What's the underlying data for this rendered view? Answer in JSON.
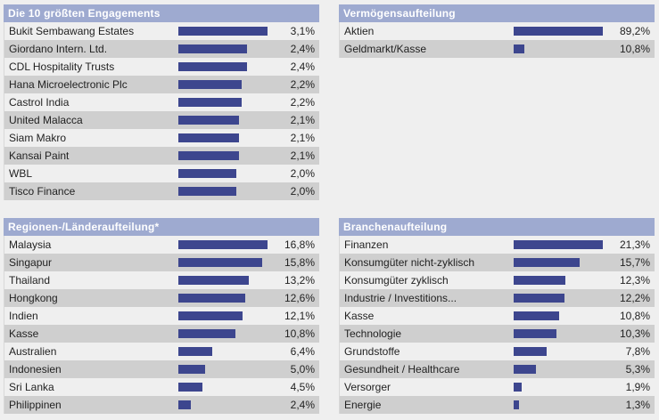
{
  "panels": [
    {
      "id": "top10",
      "title": "Die 10 größten Engagements",
      "max": 3.1,
      "rows": [
        {
          "label": "Bukit Sembawang Estates",
          "value": 3.1,
          "text": "3,1%"
        },
        {
          "label": "Giordano Intern. Ltd.",
          "value": 2.4,
          "text": "2,4%"
        },
        {
          "label": "CDL Hospitality Trusts",
          "value": 2.4,
          "text": "2,4%"
        },
        {
          "label": "Hana Microelectronic Plc",
          "value": 2.2,
          "text": "2,2%"
        },
        {
          "label": "Castrol India",
          "value": 2.2,
          "text": "2,2%"
        },
        {
          "label": "United Malacca",
          "value": 2.1,
          "text": "2,1%"
        },
        {
          "label": "Siam Makro",
          "value": 2.1,
          "text": "2,1%"
        },
        {
          "label": "Kansai Paint",
          "value": 2.1,
          "text": "2,1%"
        },
        {
          "label": "WBL",
          "value": 2.0,
          "text": "2,0%"
        },
        {
          "label": "Tisco Finance",
          "value": 2.0,
          "text": "2,0%"
        }
      ]
    },
    {
      "id": "assets",
      "title": "Vermögensaufteilung",
      "max": 89.2,
      "rows": [
        {
          "label": "Aktien",
          "value": 89.2,
          "text": "89,2%"
        },
        {
          "label": "Geldmarkt/Kasse",
          "value": 10.8,
          "text": "10,8%"
        }
      ]
    },
    {
      "id": "regions",
      "title": "Regionen-/Länderaufteilung*",
      "max": 16.8,
      "rows": [
        {
          "label": "Malaysia",
          "value": 16.8,
          "text": "16,8%"
        },
        {
          "label": "Singapur",
          "value": 15.8,
          "text": "15,8%"
        },
        {
          "label": "Thailand",
          "value": 13.2,
          "text": "13,2%"
        },
        {
          "label": "Hongkong",
          "value": 12.6,
          "text": "12,6%"
        },
        {
          "label": "Indien",
          "value": 12.1,
          "text": "12,1%"
        },
        {
          "label": "Kasse",
          "value": 10.8,
          "text": "10,8%"
        },
        {
          "label": "Australien",
          "value": 6.4,
          "text": "6,4%"
        },
        {
          "label": "Indonesien",
          "value": 5.0,
          "text": "5,0%"
        },
        {
          "label": "Sri Lanka",
          "value": 4.5,
          "text": "4,5%"
        },
        {
          "label": "Philippinen",
          "value": 2.4,
          "text": "2,4%"
        }
      ]
    },
    {
      "id": "sectors",
      "title": "Branchenaufteilung",
      "max": 21.3,
      "rows": [
        {
          "label": "Finanzen",
          "value": 21.3,
          "text": "21,3%"
        },
        {
          "label": "Konsumgüter nicht-zyklisch",
          "value": 15.7,
          "text": "15,7%"
        },
        {
          "label": "Konsumgüter zyklisch",
          "value": 12.3,
          "text": "12,3%"
        },
        {
          "label": "Industrie / Investitions...",
          "value": 12.2,
          "text": "12,2%"
        },
        {
          "label": "Kasse",
          "value": 10.8,
          "text": "10,8%"
        },
        {
          "label": "Technologie",
          "value": 10.3,
          "text": "10,3%"
        },
        {
          "label": "Grundstoffe",
          "value": 7.8,
          "text": "7,8%"
        },
        {
          "label": "Gesundheit / Healthcare",
          "value": 5.3,
          "text": "5,3%"
        },
        {
          "label": "Versorger",
          "value": 1.9,
          "text": "1,9%"
        },
        {
          "label": "Energie",
          "value": 1.3,
          "text": "1,3%"
        }
      ]
    }
  ],
  "colors": {
    "header": "#9eaad0",
    "bar": "#3d468e",
    "row_even": "#cfcfcf",
    "row_odd": "#efefef"
  }
}
